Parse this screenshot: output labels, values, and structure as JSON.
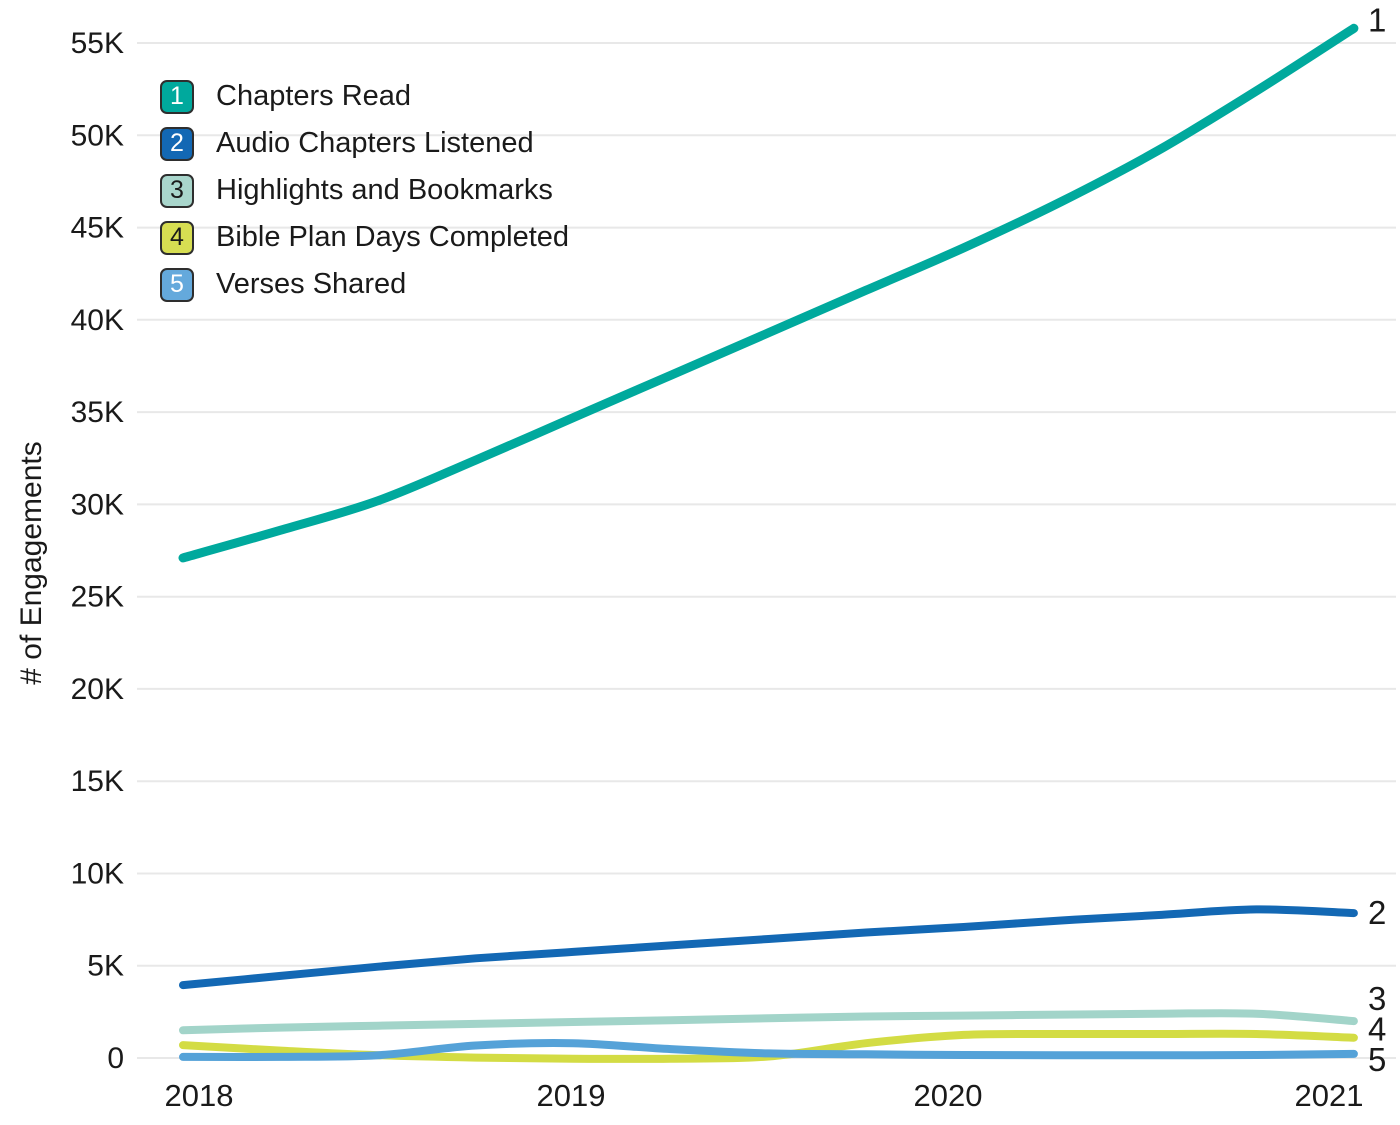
{
  "chart": {
    "y_axis_title": "# of Engagements",
    "legend": [
      {
        "rank": "1",
        "label": "Chapters Read",
        "chip_color": "#00a99d",
        "number_color": "#ffffff"
      },
      {
        "rank": "2",
        "label": "Audio Chapters Listened",
        "chip_color": "#1368b4",
        "number_color": "#ffffff"
      },
      {
        "rank": "3",
        "label": "Highlights and Bookmarks",
        "chip_color": "#a9d6cc",
        "number_color": "#1a1a1a"
      },
      {
        "rank": "4",
        "label": "Bible Plan Days Completed",
        "chip_color": "#d7de52",
        "number_color": "#1a1a1a"
      },
      {
        "rank": "5",
        "label": "Verses Shared",
        "chip_color": "#64a9dc",
        "number_color": "#ffffff"
      }
    ],
    "colors": {
      "text": "#1a1a1a",
      "gridline": "#e8e8e8",
      "background": "#ffffff"
    }
  },
  "chart_data": {
    "type": "line",
    "title": "",
    "xlabel": "",
    "ylabel": "# of Engagements",
    "legend_position": "top-left",
    "grid": "horizontal",
    "ylim": [
      0,
      55000
    ],
    "x_range": [
      2018,
      2021
    ],
    "x_tick_labels": [
      "2018",
      "2019",
      "2020",
      "2021"
    ],
    "y_tick_labels": [
      "0",
      "5K",
      "10K",
      "15K",
      "20K",
      "25K",
      "30K",
      "35K",
      "40K",
      "45K",
      "50K",
      "55K"
    ],
    "x": [
      2018,
      2018.25,
      2018.5,
      2018.75,
      2019,
      2019.25,
      2019.5,
      2019.75,
      2020,
      2020.25,
      2020.5,
      2020.75,
      2021
    ],
    "series": [
      {
        "name": "Chapters Read",
        "rank": "1",
        "color": "#00a99d",
        "values": [
          27100,
          28600,
          30200,
          32400,
          34700,
          37000,
          39300,
          41600,
          43900,
          46400,
          49200,
          52400,
          55800
        ]
      },
      {
        "name": "Audio Chapters Listened",
        "rank": "2",
        "color": "#1368b4",
        "values": [
          3950,
          4450,
          4950,
          5400,
          5750,
          6100,
          6450,
          6800,
          7100,
          7450,
          7750,
          8050,
          7850
        ]
      },
      {
        "name": "Highlights and Bookmarks",
        "rank": "3",
        "color": "#a2d4c9",
        "values": [
          1500,
          1650,
          1750,
          1850,
          1950,
          2050,
          2150,
          2250,
          2300,
          2350,
          2400,
          2400,
          2000
        ]
      },
      {
        "name": "Bible Plan Days Completed",
        "rank": "4",
        "color": "#d3dc44",
        "values": [
          700,
          400,
          150,
          20,
          -40,
          -40,
          80,
          800,
          1250,
          1300,
          1300,
          1300,
          1100
        ]
      },
      {
        "name": "Verses Shared",
        "rank": "5",
        "color": "#55a2d8",
        "values": [
          60,
          60,
          150,
          680,
          800,
          480,
          250,
          200,
          160,
          150,
          150,
          160,
          220
        ]
      }
    ]
  }
}
